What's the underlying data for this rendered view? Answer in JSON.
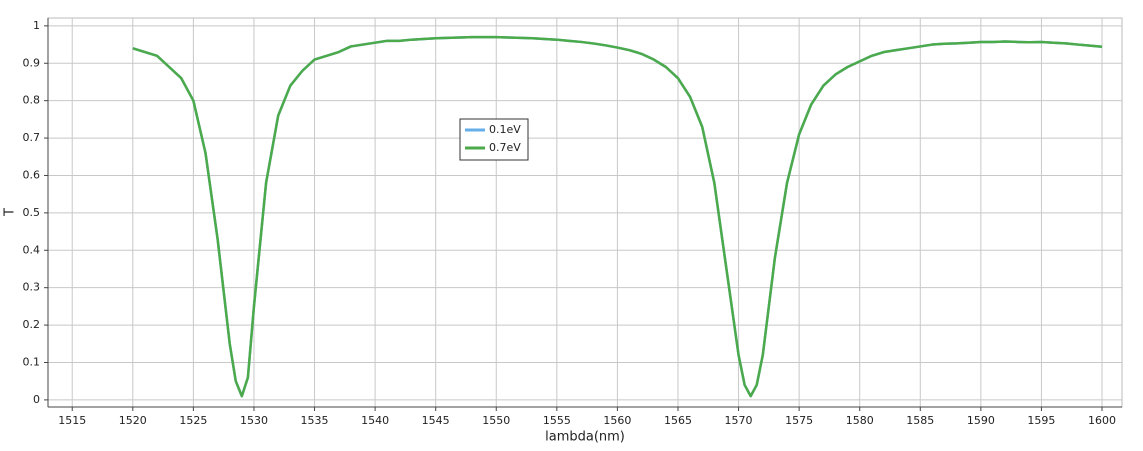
{
  "chart_data": {
    "type": "line",
    "x_label": "lambda(nm)",
    "y_label": "T",
    "x": [
      1520,
      1521,
      1522,
      1523,
      1524,
      1525,
      1526,
      1527,
      1528,
      1528.5,
      1529,
      1529.5,
      1530,
      1531,
      1532,
      1533,
      1534,
      1535,
      1536,
      1537,
      1538,
      1539,
      1540,
      1541,
      1542,
      1543,
      1544,
      1545,
      1546,
      1547,
      1548,
      1549,
      1550,
      1551,
      1552,
      1553,
      1554,
      1555,
      1556,
      1557,
      1558,
      1559,
      1560,
      1561,
      1562,
      1563,
      1564,
      1565,
      1566,
      1567,
      1568,
      1569,
      1570,
      1570.5,
      1571,
      1571.5,
      1572,
      1573,
      1574,
      1575,
      1576,
      1577,
      1578,
      1579,
      1580,
      1581,
      1582,
      1583,
      1584,
      1585,
      1586,
      1587,
      1588,
      1589,
      1590,
      1591,
      1592,
      1593,
      1594,
      1595,
      1596,
      1597,
      1598,
      1599,
      1600
    ],
    "series": [
      {
        "name": "0.1eV",
        "color": "#64aeea",
        "values": [
          0.94,
          0.93,
          0.92,
          0.89,
          0.86,
          0.8,
          0.66,
          0.43,
          0.15,
          0.05,
          0.01,
          0.06,
          0.25,
          0.58,
          0.76,
          0.84,
          0.88,
          0.91,
          0.92,
          0.93,
          0.945,
          0.95,
          0.955,
          0.96,
          0.96,
          0.963,
          0.965,
          0.967,
          0.968,
          0.969,
          0.97,
          0.97,
          0.97,
          0.969,
          0.968,
          0.967,
          0.965,
          0.963,
          0.96,
          0.957,
          0.953,
          0.948,
          0.942,
          0.935,
          0.925,
          0.91,
          0.89,
          0.86,
          0.81,
          0.73,
          0.58,
          0.35,
          0.12,
          0.04,
          0.01,
          0.04,
          0.12,
          0.38,
          0.58,
          0.71,
          0.79,
          0.84,
          0.87,
          0.89,
          0.905,
          0.92,
          0.93,
          0.935,
          0.94,
          0.945,
          0.95,
          0.952,
          0.953,
          0.955,
          0.957,
          0.957,
          0.958,
          0.957,
          0.956,
          0.957,
          0.955,
          0.953,
          0.95,
          0.947,
          0.944
        ]
      },
      {
        "name": "0.7eV",
        "color": "#4caa4a",
        "values": [
          0.94,
          0.93,
          0.92,
          0.89,
          0.86,
          0.8,
          0.66,
          0.43,
          0.15,
          0.05,
          0.01,
          0.06,
          0.25,
          0.58,
          0.76,
          0.84,
          0.88,
          0.91,
          0.92,
          0.93,
          0.945,
          0.95,
          0.955,
          0.96,
          0.96,
          0.963,
          0.965,
          0.967,
          0.968,
          0.969,
          0.97,
          0.97,
          0.97,
          0.969,
          0.968,
          0.967,
          0.965,
          0.963,
          0.96,
          0.957,
          0.953,
          0.948,
          0.942,
          0.935,
          0.925,
          0.91,
          0.89,
          0.86,
          0.81,
          0.73,
          0.58,
          0.35,
          0.12,
          0.04,
          0.01,
          0.04,
          0.12,
          0.38,
          0.58,
          0.71,
          0.79,
          0.84,
          0.87,
          0.89,
          0.905,
          0.92,
          0.93,
          0.935,
          0.94,
          0.945,
          0.95,
          0.952,
          0.953,
          0.955,
          0.957,
          0.957,
          0.958,
          0.957,
          0.956,
          0.957,
          0.955,
          0.953,
          0.95,
          0.947,
          0.944
        ]
      }
    ],
    "xlim": [
      1513,
      1601.65
    ],
    "ylim": [
      -0.019,
      1.021
    ],
    "xticks": [
      1515,
      1520,
      1525,
      1530,
      1535,
      1540,
      1545,
      1550,
      1555,
      1560,
      1565,
      1570,
      1575,
      1580,
      1585,
      1590,
      1595,
      1600
    ],
    "yticks": [
      0,
      0.1,
      0.2,
      0.3,
      0.4,
      0.5,
      0.6,
      0.7,
      0.8,
      0.9,
      1
    ],
    "grid": true,
    "legend": "top"
  }
}
